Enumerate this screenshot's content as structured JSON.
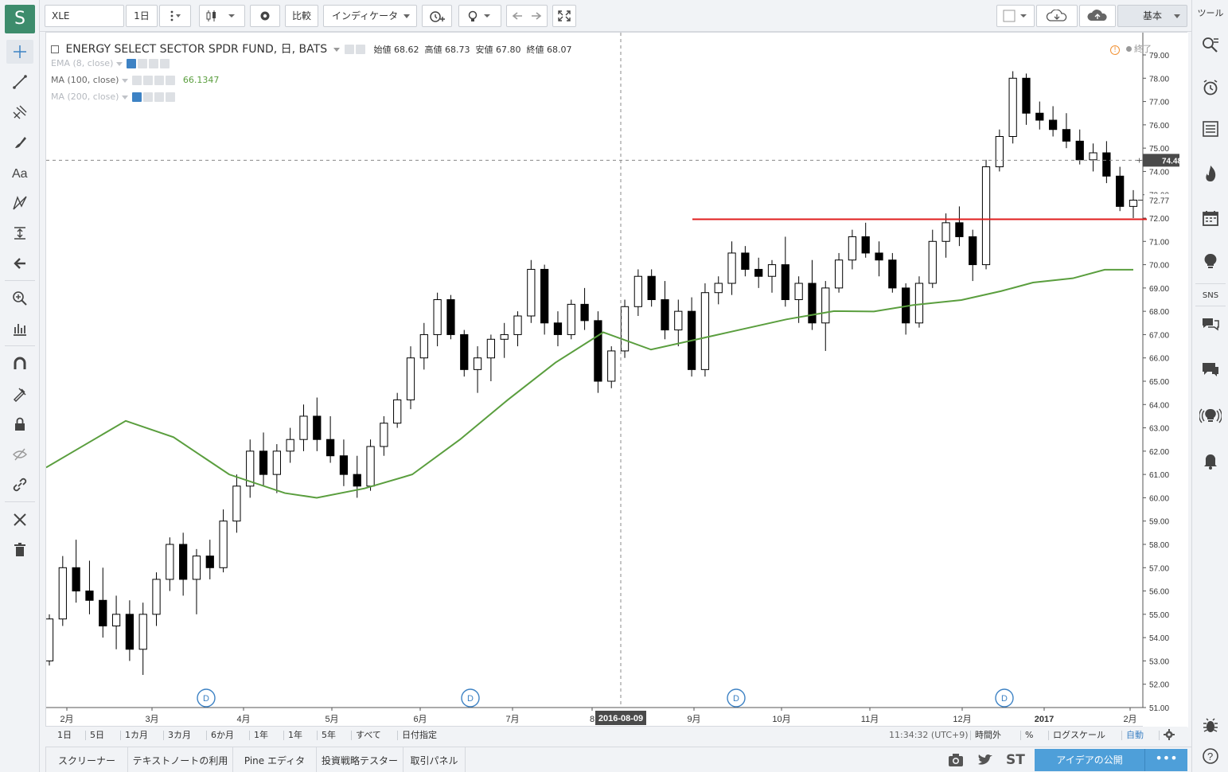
{
  "left_tools": [
    "crosshair-tool",
    "trend-line-tool",
    "pitchfork-tool",
    "brush-tool",
    "text-tool",
    "pattern-tool",
    "measure-tool",
    "back-arrow-tool",
    "zoom-tool",
    "bar-replay-tool",
    "magnet-tool",
    "lock-drawings-tool",
    "hide-drawings-tool",
    "link-tool",
    "settings-tools",
    "trash-tool"
  ],
  "logo": "S",
  "toolbar": {
    "symbol": "XLE",
    "interval": "1日",
    "compare_label": "比較",
    "indicators_label": "インディケータ",
    "layout_label": "基本",
    "tools_label": "ツール"
  },
  "legend": {
    "title": "ENERGY SELECT SECTOR SPDR FUND, 日, BATS",
    "open_label": "始値",
    "open": "68.62",
    "high_label": "高値",
    "high": "68.73",
    "low_label": "安値",
    "low": "67.80",
    "close_label": "終値",
    "close": "68.07",
    "indicators": [
      {
        "name": "EMA (8, close)",
        "value": ""
      },
      {
        "name": "MA (100, close)",
        "value": "66.1347"
      },
      {
        "name": "MA (200, close)",
        "value": ""
      }
    ],
    "status_label": "終了"
  },
  "price_axis": {
    "ticks": [
      "79.00",
      "78.00",
      "77.00",
      "76.00",
      "75.00",
      "74.00",
      "73.00",
      "72.00",
      "71.00",
      "70.00",
      "69.00",
      "68.00",
      "67.00",
      "66.00",
      "65.00",
      "64.00",
      "63.00",
      "62.00",
      "61.00",
      "60.00",
      "59.00",
      "58.00",
      "57.00",
      "56.00",
      "55.00",
      "54.00",
      "53.00",
      "52.00",
      "51.00"
    ],
    "crosshair_price": "74.48",
    "last_price": "72.77"
  },
  "time_axis": {
    "labels": [
      "2月",
      "3月",
      "4月",
      "5月",
      "6月",
      "7月",
      "8",
      "9月",
      "10月",
      "11月",
      "12月",
      "2017",
      "2月"
    ],
    "crosshair_date": "2016-08-09"
  },
  "dividend_marker": "D",
  "range_bar": {
    "ranges": [
      "1日",
      "5日",
      "1カ月",
      "3カ月",
      "6か月",
      "1年",
      "1年",
      "5年",
      "すべて",
      "日付指定"
    ],
    "clock": "11:34:32 (UTC+9)",
    "session": "時間外",
    "percent": "%",
    "log": "ログスケール",
    "auto": "自動"
  },
  "bottom_panels": [
    "スクリーナー",
    "テキストノートの利用",
    "Pine エディタ",
    "投資戦略テスター",
    "取引パネル"
  ],
  "bottom_icons": [
    "camera-icon",
    "twitter-icon"
  ],
  "stocktwits_label": "ST",
  "publish_label": "アイデアの公開",
  "publish_more": "•••",
  "right_label_sns": "SNS",
  "colors": {
    "up_candle": "#ffffff",
    "down_candle": "#000000",
    "ma100": "#5a9e3e",
    "support_line": "#e01e1e",
    "accent": "#3d82c4",
    "alert_orange": "#f29133"
  },
  "chart_data": {
    "type": "candlestick",
    "symbol": "XLE",
    "timeframe": "daily",
    "price_range": [
      51,
      79
    ],
    "ohlc_approx": [
      [
        53,
        55,
        52.8,
        54.8
      ],
      [
        54.8,
        57.5,
        54.5,
        57
      ],
      [
        57,
        58.2,
        55.5,
        56
      ],
      [
        56,
        57.3,
        55,
        55.6
      ],
      [
        55.6,
        57,
        54,
        54.5
      ],
      [
        54.5,
        55.8,
        53.5,
        55
      ],
      [
        55,
        55.6,
        53,
        53.5
      ],
      [
        53.5,
        55.5,
        52.4,
        55
      ],
      [
        55,
        56.8,
        54.5,
        56.5
      ],
      [
        56.5,
        58.3,
        56,
        58
      ],
      [
        58,
        58.5,
        55.8,
        56.5
      ],
      [
        56.5,
        57.8,
        55,
        57.5
      ],
      [
        57.5,
        58.2,
        56.5,
        57
      ],
      [
        57,
        59.5,
        56.8,
        59
      ],
      [
        59,
        61,
        58.5,
        60.5
      ],
      [
        60.5,
        62.5,
        60,
        62
      ],
      [
        62,
        62.8,
        60.5,
        61
      ],
      [
        61,
        62.3,
        60.2,
        62
      ],
      [
        62,
        63,
        61.5,
        62.5
      ],
      [
        62.5,
        64,
        62,
        63.5
      ],
      [
        63.5,
        64.3,
        62,
        62.5
      ],
      [
        62.5,
        63.5,
        61.5,
        61.8
      ],
      [
        61.8,
        62.5,
        60.5,
        61
      ],
      [
        61,
        61.8,
        60,
        60.5
      ],
      [
        60.5,
        62.5,
        60.3,
        62.2
      ],
      [
        62.2,
        63.5,
        61.8,
        63.2
      ],
      [
        63.2,
        64.5,
        63,
        64.2
      ],
      [
        64.2,
        66.5,
        63.8,
        66
      ],
      [
        66,
        67.5,
        65.5,
        67
      ],
      [
        67,
        68.8,
        66.5,
        68.5
      ],
      [
        68.5,
        68.7,
        66.8,
        67
      ],
      [
        67,
        67.2,
        65.2,
        65.5
      ],
      [
        65.5,
        66.5,
        64.5,
        66
      ],
      [
        66,
        67,
        65,
        66.8
      ],
      [
        66.8,
        67.5,
        66,
        67
      ],
      [
        67,
        68,
        66.5,
        67.8
      ],
      [
        67.8,
        70.2,
        67.5,
        69.8
      ],
      [
        69.8,
        70,
        67,
        67.5
      ],
      [
        67.5,
        68,
        66.5,
        67
      ],
      [
        67,
        68.5,
        66.8,
        68.3
      ],
      [
        68.3,
        69,
        67.2,
        67.6
      ],
      [
        67.6,
        68,
        64.5,
        65
      ],
      [
        65,
        66.5,
        64.7,
        66.3
      ],
      [
        66.3,
        68.5,
        66,
        68.2
      ],
      [
        68.2,
        69.8,
        67.8,
        69.5
      ],
      [
        69.5,
        69.8,
        68.2,
        68.5
      ],
      [
        68.5,
        69.3,
        66.8,
        67.2
      ],
      [
        67.2,
        68.5,
        66.5,
        68
      ],
      [
        68,
        68.6,
        65.2,
        65.5
      ],
      [
        65.5,
        69.2,
        65.2,
        68.8
      ],
      [
        68.8,
        69.5,
        68.3,
        69.2
      ],
      [
        69.2,
        71,
        68.7,
        70.5
      ],
      [
        70.5,
        70.8,
        69.5,
        69.8
      ],
      [
        69.8,
        70.3,
        69,
        69.5
      ],
      [
        69.5,
        70.2,
        68.8,
        70
      ],
      [
        70,
        71.2,
        68.2,
        68.5
      ],
      [
        68.5,
        69.5,
        67.5,
        69.2
      ],
      [
        69.2,
        70.2,
        67.2,
        67.5
      ],
      [
        67.5,
        69.3,
        66.3,
        69
      ],
      [
        69,
        70.5,
        68.8,
        70.2
      ],
      [
        70.2,
        71.5,
        69.8,
        71.2
      ],
      [
        71.2,
        71.8,
        70.3,
        70.5
      ],
      [
        70.5,
        71,
        69.5,
        70.2
      ],
      [
        70.2,
        70.5,
        68.8,
        69
      ],
      [
        69,
        69.2,
        67,
        67.5
      ],
      [
        67.5,
        69.5,
        67.3,
        69.2
      ],
      [
        69.2,
        71.5,
        69,
        71
      ],
      [
        71,
        72.2,
        70.3,
        71.8
      ],
      [
        71.8,
        72.5,
        70.8,
        71.2
      ],
      [
        71.2,
        71.5,
        69.3,
        70
      ],
      [
        70,
        74.5,
        69.8,
        74.2
      ],
      [
        74.2,
        75.8,
        74,
        75.5
      ],
      [
        75.5,
        78.3,
        75.2,
        78
      ],
      [
        78,
        78.2,
        76,
        76.5
      ],
      [
        76.5,
        77,
        75.8,
        76.2
      ],
      [
        76.2,
        76.8,
        75.5,
        75.8
      ],
      [
        75.8,
        76.5,
        75,
        75.3
      ],
      [
        75.3,
        75.8,
        74.3,
        74.5
      ],
      [
        74.5,
        75.2,
        74,
        74.8
      ],
      [
        74.8,
        75.3,
        73.5,
        73.8
      ],
      [
        73.8,
        74.2,
        72.3,
        72.5
      ],
      [
        72.5,
        73.2,
        72,
        72.77
      ]
    ],
    "series": [
      {
        "name": "MA (100, close)",
        "last_value": 66.1347
      }
    ],
    "horizontal_line": 71.95,
    "crosshair_line": 74.48,
    "dividend_markers": [
      "3月",
      "6月",
      "9月",
      "12月"
    ]
  }
}
